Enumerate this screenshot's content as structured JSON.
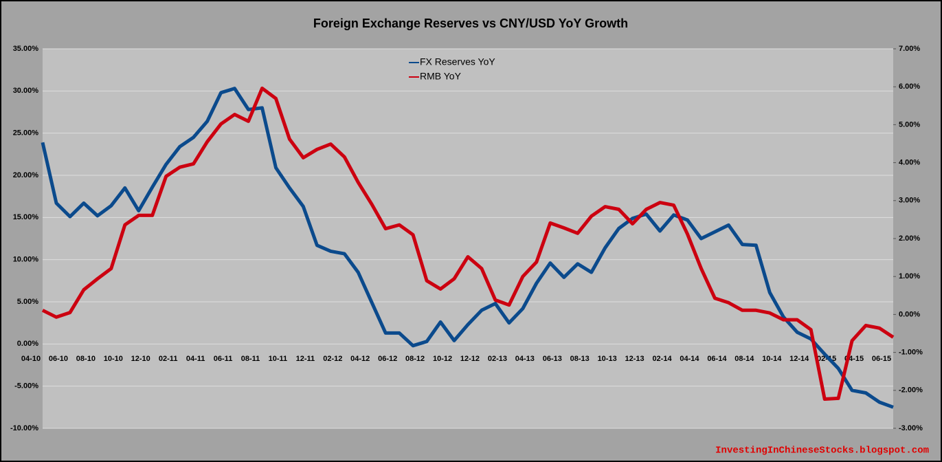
{
  "chart_data": {
    "type": "line",
    "title": "Foreign Exchange Reserves vs CNY/USD YoY Growth",
    "watermark": "InvestingInChineseStocks.blogspot.com",
    "legend": "top",
    "grid": true,
    "categories": [
      "04-10",
      null,
      "06-10",
      null,
      "08-10",
      null,
      "10-10",
      null,
      "12-10",
      null,
      "02-11",
      null,
      "04-11",
      null,
      "06-11",
      null,
      "08-11",
      null,
      "10-11",
      null,
      "12-11",
      null,
      "02-12",
      null,
      "04-12",
      null,
      "06-12",
      null,
      "08-12",
      null,
      "10-12",
      null,
      "12-12",
      null,
      "02-13",
      null,
      "04-13",
      null,
      "06-13",
      null,
      "08-13",
      null,
      "10-13",
      null,
      "12-13",
      null,
      "02-14",
      null,
      "04-14",
      null,
      "06-14",
      null,
      "08-14",
      null,
      "10-14",
      null,
      "12-14",
      null,
      "02-15",
      null,
      "04-15",
      null,
      "06-15"
    ],
    "ylim": [
      -10,
      35
    ],
    "yticks": [
      {
        "value": -10,
        "label": "-10.00%"
      },
      {
        "value": -5,
        "label": "-5.00%"
      },
      {
        "value": 0,
        "label": "0.00%"
      },
      {
        "value": 5,
        "label": "5.00%"
      },
      {
        "value": 10,
        "label": "10.00%"
      },
      {
        "value": 15,
        "label": "15.00%"
      },
      {
        "value": 20,
        "label": "20.00%"
      },
      {
        "value": 25,
        "label": "25.00%"
      },
      {
        "value": 30,
        "label": "30.00%"
      },
      {
        "value": 35,
        "label": "35.00%"
      }
    ],
    "y2lim": [
      -3,
      7
    ],
    "y2ticks": [
      {
        "value": -3,
        "label": "-3.00%"
      },
      {
        "value": -2,
        "label": "-2.00%"
      },
      {
        "value": -1,
        "label": "-1.00%"
      },
      {
        "value": 0,
        "label": "0.00%"
      },
      {
        "value": 1,
        "label": "1.00%"
      },
      {
        "value": 2,
        "label": "2.00%"
      },
      {
        "value": 3,
        "label": "3.00%"
      },
      {
        "value": 4,
        "label": "4.00%"
      },
      {
        "value": 5,
        "label": "5.00%"
      },
      {
        "value": 6,
        "label": "6.00%"
      },
      {
        "value": 7,
        "label": "7.00%"
      }
    ],
    "series": [
      {
        "name": "FX Reserves YoY",
        "color": "#0b4a8c",
        "values": [
          23.9,
          16.7,
          15.1,
          16.7,
          15.2,
          16.4,
          18.5,
          15.8,
          18.6,
          21.3,
          23.4,
          24.5,
          26.4,
          29.8,
          30.3,
          27.8,
          28.0,
          20.9,
          18.5,
          16.3,
          11.7,
          11.0,
          10.7,
          8.5,
          4.9,
          1.3,
          1.3,
          -0.2,
          0.3,
          2.6,
          0.4,
          2.3,
          4.0,
          4.8,
          2.5,
          4.2,
          7.2,
          9.6,
          7.9,
          9.5,
          8.5,
          11.4,
          13.7,
          14.9,
          15.4,
          13.4,
          15.3,
          14.7,
          12.5,
          13.3,
          14.1,
          11.8,
          11.7,
          6.1,
          3.2,
          1.4,
          0.6,
          -1.2,
          -2.9,
          -5.5,
          -5.8,
          -6.9,
          -7.5
        ]
      },
      {
        "name": "RMB YoY",
        "color": "#cc0010",
        "axis": "y2",
        "values": [
          0.11,
          -0.07,
          0.05,
          0.65,
          0.94,
          1.21,
          2.36,
          2.61,
          2.61,
          3.64,
          3.88,
          3.97,
          4.55,
          5.02,
          5.27,
          5.09,
          5.96,
          5.69,
          4.62,
          4.13,
          4.35,
          4.49,
          4.15,
          3.48,
          2.9,
          2.26,
          2.36,
          2.1,
          0.89,
          0.67,
          0.94,
          1.52,
          1.21,
          0.38,
          0.25,
          1.0,
          1.38,
          2.41,
          2.28,
          2.14,
          2.59,
          2.84,
          2.77,
          2.39,
          2.77,
          2.95,
          2.88,
          2.12,
          1.21,
          0.43,
          0.31,
          0.11,
          0.11,
          0.04,
          -0.14,
          -0.14,
          -0.4,
          -2.23,
          -2.21,
          -0.69,
          -0.29,
          -0.36,
          -0.6
        ]
      }
    ]
  }
}
